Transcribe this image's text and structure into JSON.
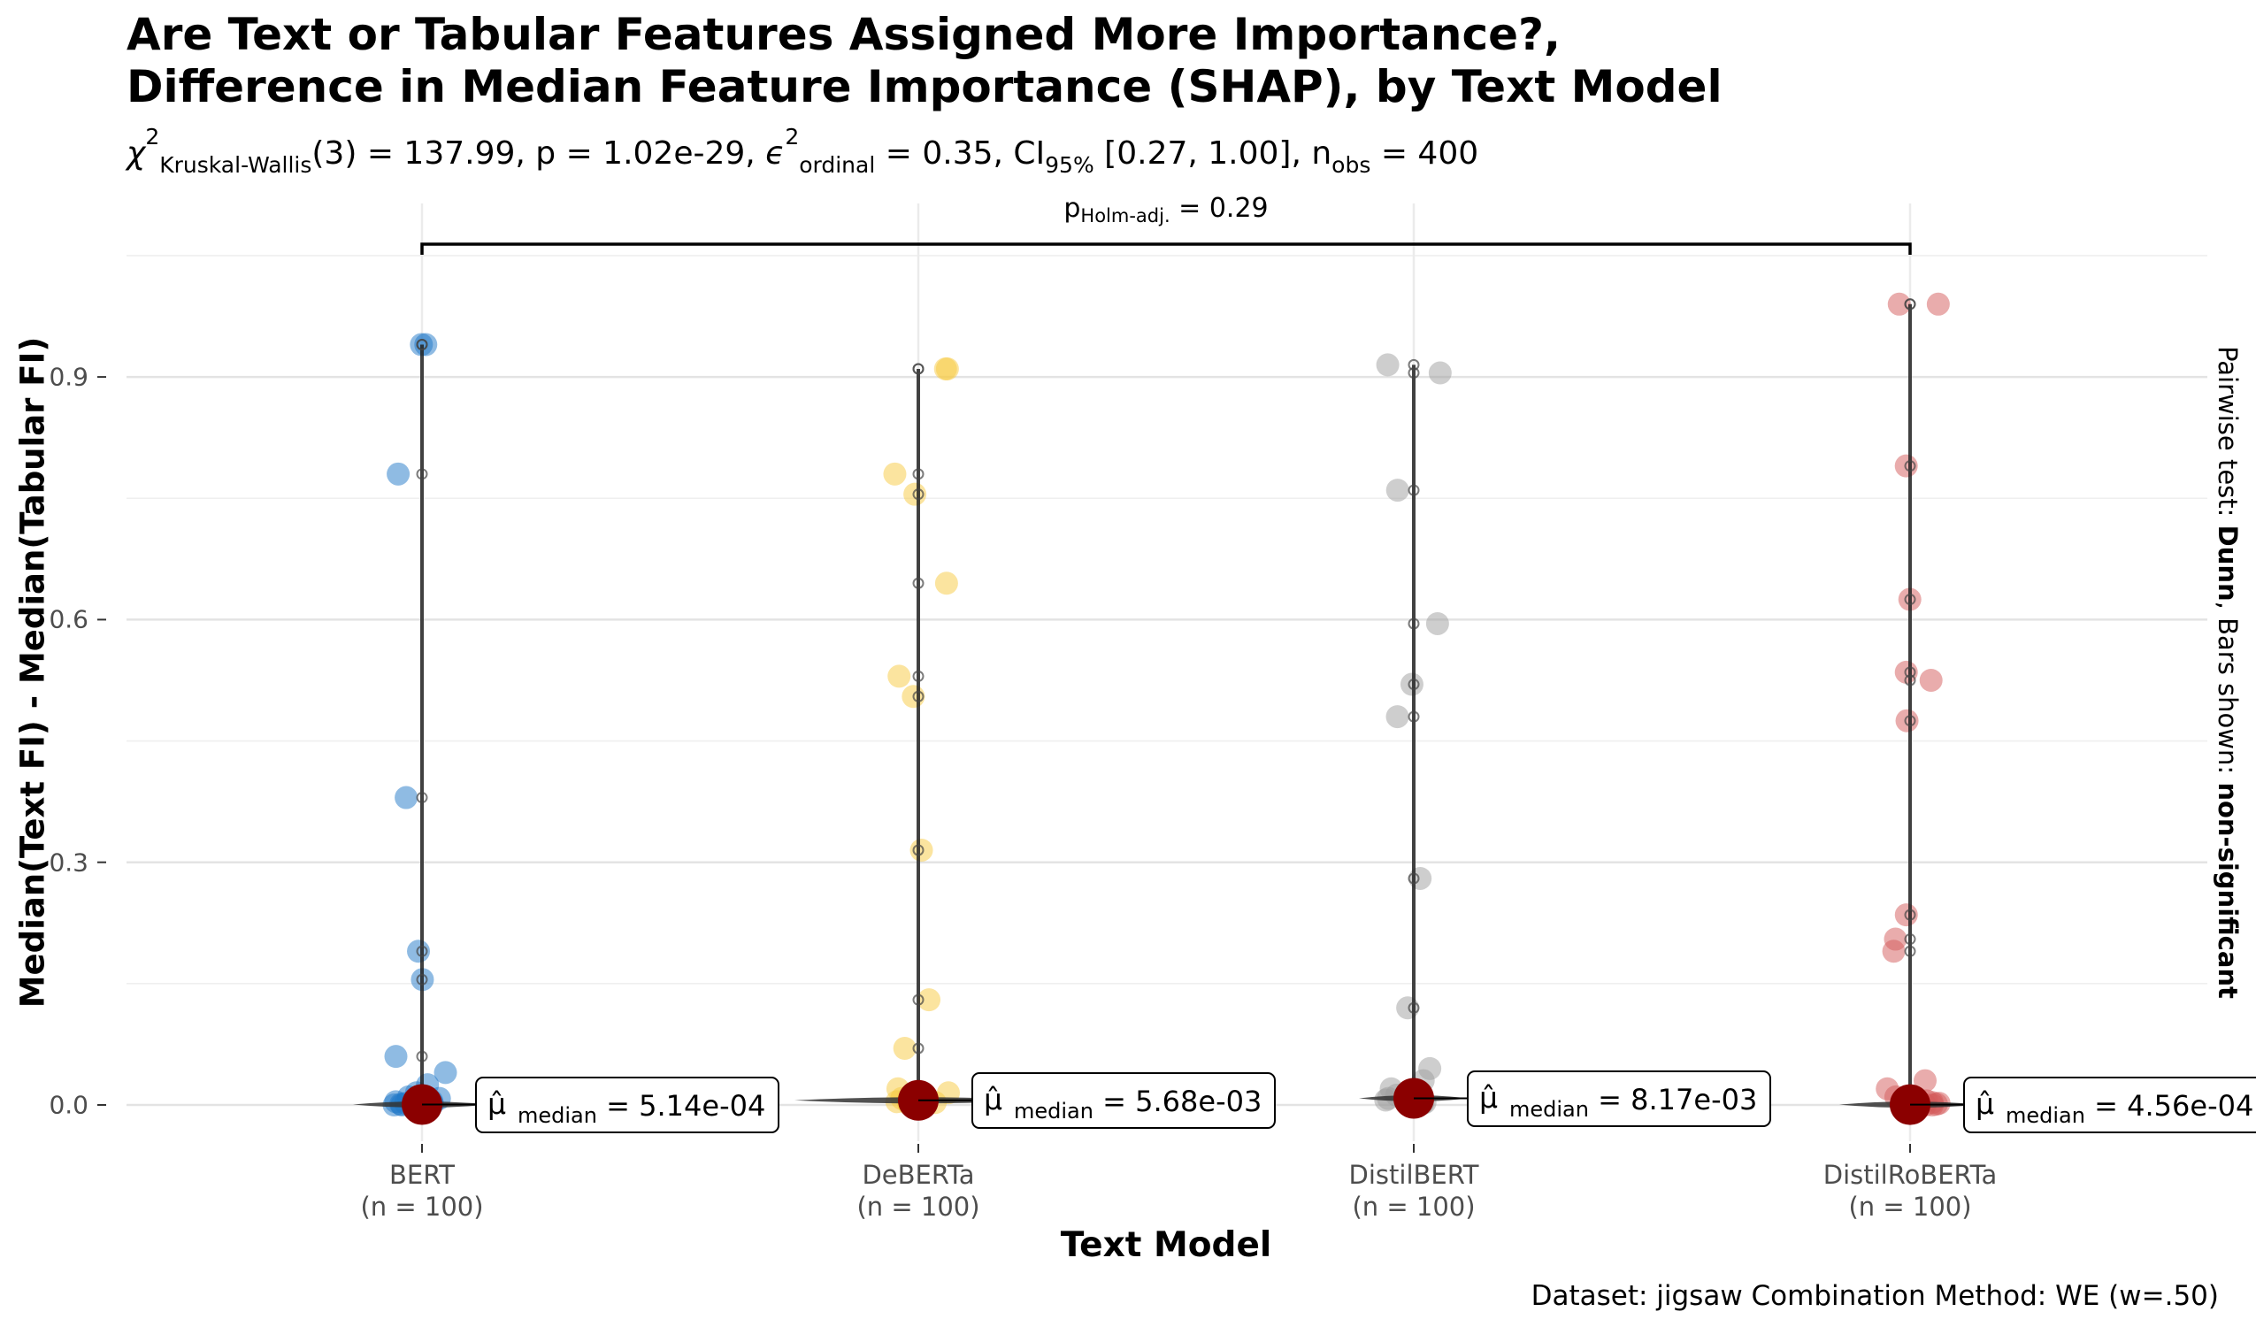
{
  "colors": {
    "BERT": "#1f78c8",
    "DeBERTa": "#f7c940",
    "DistilBERT": "#9e9e9e",
    "DistilRoBERTa": "#d45a5a",
    "median_point": "#8b0000",
    "grid": "#e6e6e6"
  },
  "chart_data": {
    "type": "violin-scatter",
    "title_line1": "Are Text or Tabular Features Assigned More Importance?,",
    "title_line2": "Difference in Median Feature Importance (SHAP), by Text Model",
    "subtitle": {
      "chi_label": "Kruskal-Wallis",
      "chi_value": "(3) = 137.99, p = 1.02e-29, ",
      "eps_label": "ordinal",
      "eps_value": " = 0.35, CI",
      "ci_label": "95%",
      "ci_value": " [0.27, 1.00], n",
      "nobs_label": "obs",
      "nobs_value": " = 400"
    },
    "xlabel": "Text Model",
    "ylabel": "Median(Text FI) - Median(Tabular FI)",
    "right_label_prefix": "Pairwise test: ",
    "right_label_test": "Dunn",
    "right_label_mid": ", Bars shown: ",
    "right_label_bars": "non-significant",
    "caption": "Dataset:  jigsaw Combination Method:  WE (w=.50)",
    "ylim": [
      -0.05,
      1.07
    ],
    "yticks": [
      "0.0",
      "0.3",
      "0.6",
      "0.9"
    ],
    "ytick_values": [
      0.0,
      0.3,
      0.6,
      0.9
    ],
    "pairwise": {
      "from": "BERT",
      "to": "DistilRoBERTa",
      "p_label": "Holm-adj.",
      "p_value": " = 0.29"
    },
    "groups": [
      {
        "name": "BERT",
        "n_label": "(n = 100)",
        "median": 0.000514,
        "median_label_prefix": "median",
        "median_label_value": " = 5.14e-04",
        "max": 0.94,
        "points": [
          0.94,
          0.94,
          0.78,
          0.38,
          0.19,
          0.155,
          0.06,
          0.04,
          0.025,
          0.015,
          0.01,
          0.008,
          0.005,
          0.004,
          0.003,
          0.002,
          0.001,
          0.001,
          0.0,
          0.0,
          0.0,
          0.0
        ]
      },
      {
        "name": "DeBERTa",
        "n_label": "(n = 100)",
        "median": 0.00568,
        "median_label_prefix": "median",
        "median_label_value": " = 5.68e-03",
        "max": 0.91,
        "points": [
          0.91,
          0.91,
          0.78,
          0.755,
          0.645,
          0.53,
          0.505,
          0.315,
          0.13,
          0.07,
          0.02,
          0.015,
          0.01,
          0.008,
          0.006,
          0.005,
          0.004,
          0.003,
          0.002,
          0.001
        ]
      },
      {
        "name": "DistilBERT",
        "n_label": "(n = 100)",
        "median": 0.00817,
        "median_label_prefix": "median",
        "median_label_value": " = 8.17e-03",
        "max": 0.915,
        "points": [
          0.915,
          0.905,
          0.76,
          0.595,
          0.52,
          0.48,
          0.28,
          0.12,
          0.045,
          0.03,
          0.02,
          0.012,
          0.01,
          0.008,
          0.006,
          0.004,
          0.003,
          0.002
        ]
      },
      {
        "name": "DistilRoBERTa",
        "n_label": "(n = 100)",
        "median": 0.000456,
        "median_label_prefix": "median",
        "median_label_value": " = 4.56e-04",
        "max": 0.99,
        "points": [
          0.99,
          0.99,
          0.79,
          0.625,
          0.535,
          0.525,
          0.475,
          0.235,
          0.205,
          0.19,
          0.03,
          0.02,
          0.01,
          0.005,
          0.003,
          0.002,
          0.001,
          0.0,
          0.0
        ]
      }
    ]
  }
}
